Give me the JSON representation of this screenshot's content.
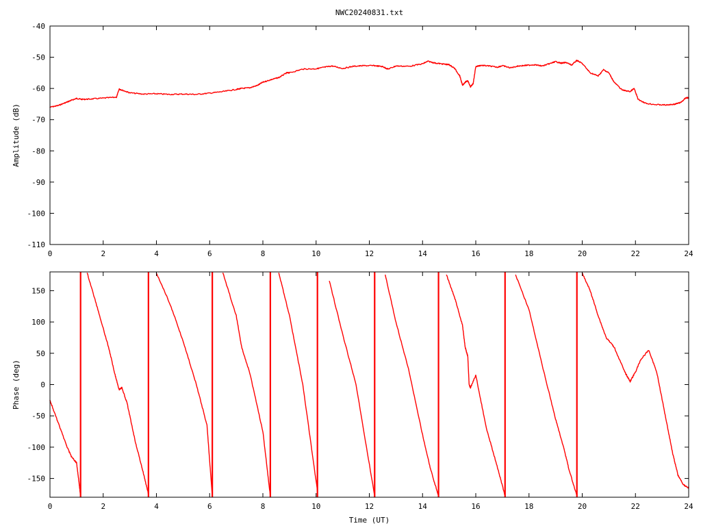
{
  "title": "NWC20240831.txt",
  "colors": {
    "series": "#ff0000",
    "axes": "#000000",
    "background": "#ffffff"
  },
  "chart_data": [
    {
      "type": "line",
      "name": "amplitude-chart",
      "title": "NWC20240831.txt",
      "xlabel": "",
      "ylabel": "Amplitude (dB)",
      "xlim": [
        0,
        24
      ],
      "ylim": [
        -110,
        -40
      ],
      "grid": false,
      "legend": "none",
      "x_ticks": [
        "0",
        "2",
        "4",
        "6",
        "8",
        "10",
        "12",
        "14",
        "16",
        "18",
        "20",
        "22",
        "24"
      ],
      "y_ticks": [
        "-40",
        "-50",
        "-60",
        "-70",
        "-80",
        "-90",
        "-100",
        "-110"
      ],
      "series": [
        {
          "x": [
            0,
            0.3,
            0.6,
            0.8,
            1.0,
            1.2,
            1.5,
            2.0,
            2.5,
            2.6,
            2.7,
            3.0,
            3.5,
            4.0,
            4.5,
            5.0,
            5.5,
            6.0,
            6.5,
            7.0,
            7.2,
            7.5,
            7.8,
            8.0,
            8.3,
            8.6,
            8.9,
            9.0,
            9.5,
            10.0,
            10.3,
            10.6,
            11.0,
            11.4,
            11.8,
            12.2,
            12.5,
            12.7,
            13.0,
            13.5,
            14.0,
            14.2,
            14.5,
            14.8,
            15.0,
            15.2,
            15.4,
            15.5,
            15.6,
            15.7,
            15.8,
            15.9,
            16.0,
            16.2,
            16.5,
            16.8,
            17.0,
            17.3,
            17.6,
            17.9,
            18.2,
            18.5,
            18.8,
            19.0,
            19.2,
            19.4,
            19.6,
            19.8,
            20.0,
            20.3,
            20.6,
            20.8,
            21.0,
            21.2,
            21.5,
            21.8,
            21.95,
            22.1,
            22.4,
            22.8,
            23.2,
            23.5,
            23.7,
            23.9,
            24.0
          ],
          "y": [
            -66,
            -65.5,
            -64.5,
            -63.8,
            -63.2,
            -63.5,
            -63.4,
            -63.1,
            -62.8,
            -60.2,
            -60.5,
            -61.4,
            -61.8,
            -61.7,
            -61.9,
            -61.8,
            -61.9,
            -61.5,
            -61.0,
            -60.3,
            -60.0,
            -59.8,
            -59.0,
            -58.0,
            -57.2,
            -56.5,
            -55.0,
            -55.0,
            -53.8,
            -53.7,
            -53.2,
            -52.8,
            -53.6,
            -52.9,
            -52.7,
            -52.7,
            -53.0,
            -53.8,
            -52.8,
            -52.9,
            -52.1,
            -51.3,
            -51.9,
            -52.2,
            -52.4,
            -53.5,
            -56.0,
            -59.0,
            -58.0,
            -57.5,
            -59.5,
            -58.5,
            -53.0,
            -52.6,
            -52.8,
            -53.2,
            -52.7,
            -53.4,
            -52.8,
            -52.6,
            -52.4,
            -52.8,
            -52.0,
            -51.4,
            -51.9,
            -51.7,
            -52.5,
            -51.0,
            -52.0,
            -55.0,
            -56.0,
            -54.0,
            -55.0,
            -58.0,
            -60.5,
            -61.0,
            -60.0,
            -63.5,
            -64.8,
            -65.2,
            -65.3,
            -65.0,
            -64.5,
            -63.0,
            -63.0
          ]
        }
      ]
    },
    {
      "type": "line",
      "name": "phase-chart",
      "title": "",
      "xlabel": "Time (UT)",
      "ylabel": "Phase (deg)",
      "xlim": [
        0,
        24
      ],
      "ylim": [
        -180,
        180
      ],
      "grid": false,
      "legend": "none",
      "x_ticks": [
        "0",
        "2",
        "4",
        "6",
        "8",
        "10",
        "12",
        "14",
        "16",
        "18",
        "20",
        "22",
        "24"
      ],
      "y_ticks": [
        "150",
        "100",
        "50",
        "0",
        "-50",
        "-100",
        "-150"
      ],
      "series": [
        {
          "x": [
            0,
            0.3,
            0.6,
            0.8,
            1.0,
            1.1,
            1.15,
            1.15,
            1.4,
            1.8,
            2.2,
            2.45,
            2.6,
            2.7,
            2.9,
            3.2,
            3.5,
            3.7,
            3.7,
            4.0,
            4.5,
            5.0,
            5.5,
            5.9,
            6.1,
            6.1,
            6.5,
            7.0,
            7.2,
            7.5,
            8.0,
            8.28,
            8.28,
            8.6,
            9.0,
            9.5,
            10.05,
            10.05,
            10.5,
            11.0,
            11.5,
            12.2,
            12.2,
            12.6,
            13.0,
            13.5,
            14.0,
            14.3,
            14.6,
            14.6,
            14.9,
            15.2,
            15.5,
            15.6,
            15.7,
            15.75,
            15.8,
            15.85,
            16.0,
            16.4,
            16.8,
            17.1,
            17.1,
            17.5,
            18.0,
            18.5,
            19.0,
            19.3,
            19.5,
            19.8,
            19.8,
            20.0,
            20.3,
            20.6,
            20.9,
            21.2,
            21.6,
            21.8,
            22.0,
            22.2,
            22.5,
            22.8,
            23.1,
            23.4,
            23.6,
            23.8,
            24.0
          ],
          "y": [
            -25,
            -60,
            -95,
            -115,
            -125,
            -160,
            -178,
            null,
            178,
            120,
            60,
            15,
            -8,
            -5,
            -30,
            -90,
            -140,
            -175,
            null,
            178,
            130,
            70,
            0,
            -65,
            -178,
            null,
            178,
            110,
            60,
            20,
            -75,
            -178,
            null,
            178,
            110,
            0,
            -170,
            null,
            165,
            80,
            0,
            -178,
            null,
            175,
            100,
            20,
            -80,
            -135,
            -178,
            null,
            175,
            140,
            95,
            60,
            45,
            0,
            -5,
            0,
            15,
            -70,
            -130,
            -178,
            null,
            175,
            120,
            30,
            -55,
            -100,
            -135,
            -178,
            null,
            178,
            150,
            110,
            75,
            60,
            20,
            5,
            20,
            40,
            55,
            20,
            -45,
            -110,
            -145,
            -160,
            -165
          ]
        }
      ]
    }
  ]
}
